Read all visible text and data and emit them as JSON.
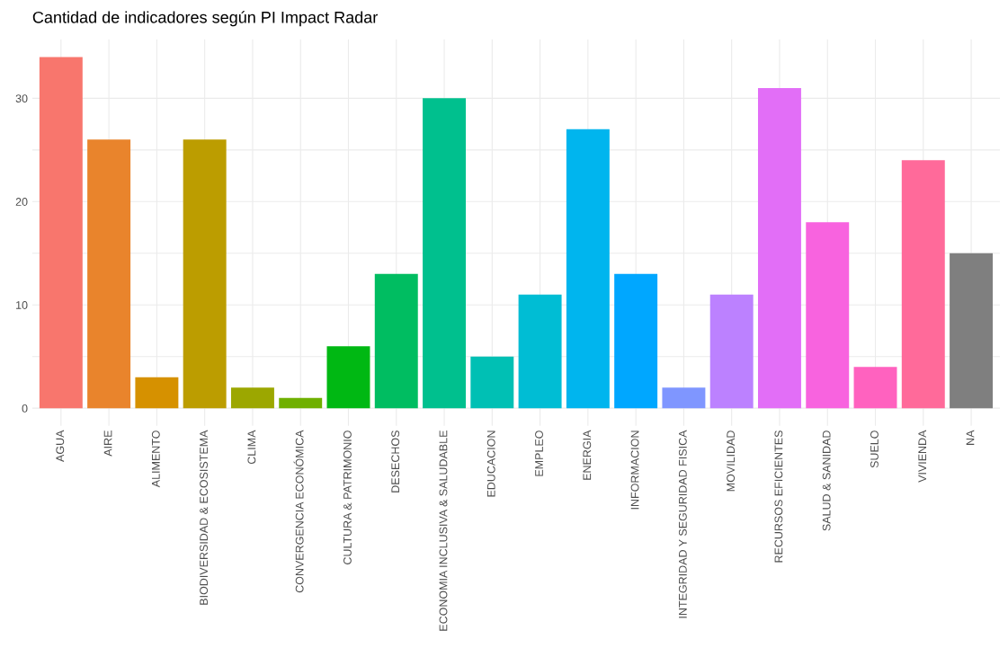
{
  "chart_data": {
    "type": "bar",
    "title": "Cantidad de indicadores según PI Impact Radar",
    "categories": [
      "AGUA",
      "AIRE",
      "ALIMENTO",
      "BIODIVERSIDAD & ECOSISTEMA",
      "CLIMA",
      "CONVERGENCIA ECONÓMICA",
      "CULTURA & PATRIMONIO",
      "DESECHOS",
      "ECONOMIA INCLUSIVA & SALUDABLE",
      "EDUCACION",
      "EMPLEO",
      "ENERGIA",
      "INFORMACION",
      "INTEGRIDAD Y SEGURIDAD FISICA",
      "MOVILIDAD",
      "RECURSOS EFICIENTES",
      "SALUD & SANIDAD",
      "SUELO",
      "VIVIENDA",
      "NA"
    ],
    "values": [
      34,
      26,
      3,
      26,
      2,
      1,
      6,
      13,
      30,
      5,
      11,
      27,
      13,
      2,
      11,
      31,
      18,
      4,
      24,
      15
    ],
    "colors": [
      "#F8766D",
      "#E9842C",
      "#D69100",
      "#BC9D00",
      "#9CA700",
      "#6FB000",
      "#00B813",
      "#00BD61",
      "#00C08E",
      "#00C0B4",
      "#00BDD4",
      "#00B5EE",
      "#00A7FF",
      "#7F96FF",
      "#BC81FF",
      "#E26EF7",
      "#F863DF",
      "#FF62BF",
      "#FF6A9A",
      "#7F7F7F"
    ],
    "ylim": [
      -1.7,
      35.7
    ],
    "yticks": [
      0,
      10,
      20,
      30
    ],
    "grid": true,
    "legend": false
  }
}
